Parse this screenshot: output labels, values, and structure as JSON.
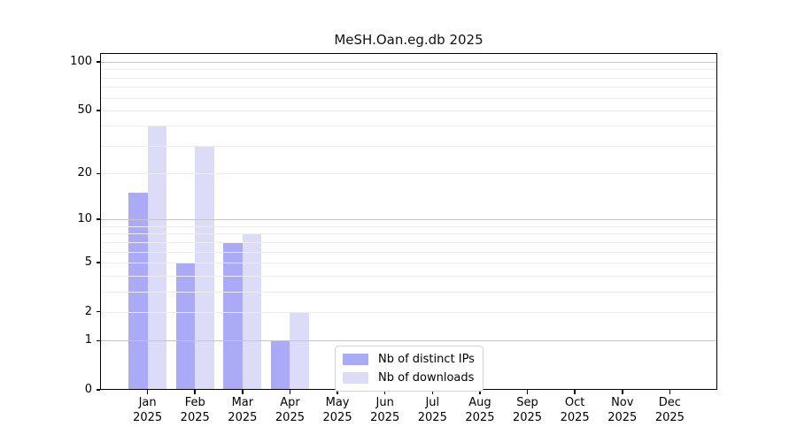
{
  "chart_data": {
    "type": "bar",
    "title": "MeSH.Oan.eg.db 2025",
    "categories": [
      "Jan 2025",
      "Feb 2025",
      "Mar 2025",
      "Apr 2025",
      "May 2025",
      "Jun 2025",
      "Jul 2025",
      "Aug 2025",
      "Sep 2025",
      "Oct 2025",
      "Nov 2025",
      "Dec 2025"
    ],
    "series": [
      {
        "name": "Nb of distinct IPs",
        "color": "#aaaaf7",
        "values": [
          15,
          5,
          7,
          1,
          0,
          0,
          0,
          0,
          0,
          0,
          0,
          0
        ]
      },
      {
        "name": "Nb of downloads",
        "color": "#dcdcf9",
        "values": [
          40,
          30,
          8,
          2,
          0,
          0,
          0,
          0,
          0,
          0,
          0,
          0
        ]
      }
    ],
    "yscale": "log1p",
    "ylim": [
      0,
      100
    ],
    "yticks": [
      0,
      1,
      2,
      5,
      10,
      20,
      50,
      100
    ],
    "major_gridlines": [
      1,
      10,
      100
    ],
    "minor_gridlines": [
      2,
      3,
      4,
      5,
      6,
      7,
      8,
      9,
      20,
      30,
      40,
      50,
      60,
      70,
      80,
      90
    ],
    "xlabel": "",
    "ylabel": "",
    "grid": true,
    "legend_position": "lower center",
    "colors": {
      "major_grid": "#c6c6c6",
      "minor_grid": "#ededed",
      "axis": "#000000",
      "background": "#ffffff"
    }
  }
}
